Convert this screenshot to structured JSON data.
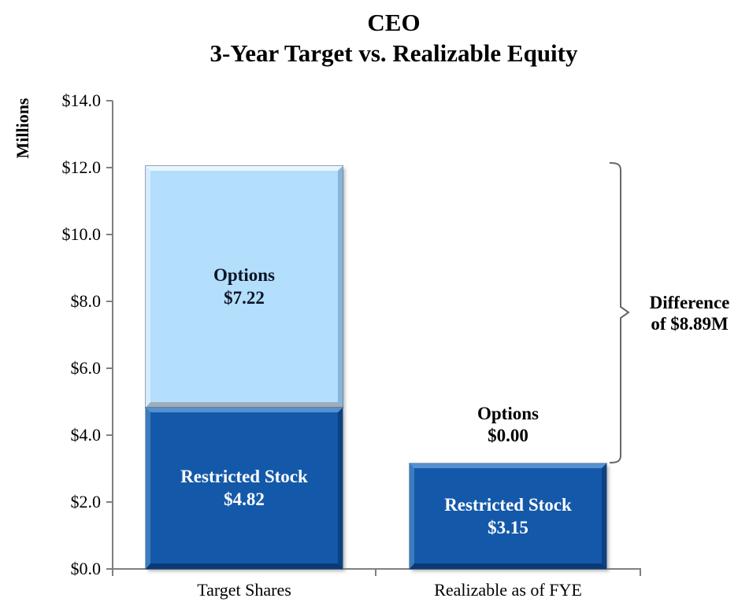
{
  "chart_data": {
    "type": "bar",
    "stacked": true,
    "title": "CEO",
    "subtitle": "3-Year Target vs. Realizable Equity",
    "ylabel": "Millions",
    "ylim": [
      0,
      14
    ],
    "ytick_step": 2,
    "ytick_labels": [
      "$14.0",
      "$12.0",
      "$10.0",
      "$8.0",
      "$6.0",
      "$4.0",
      "$2.0",
      "$0.0"
    ],
    "grid": false,
    "legend_position": "none",
    "categories": [
      "Target Shares",
      "Realizable as of FYE"
    ],
    "series": [
      {
        "name": "Restricted Stock",
        "values": [
          4.82,
          3.15
        ],
        "color": "#1459A9"
      },
      {
        "name": "Options",
        "values": [
          7.22,
          0.0
        ],
        "color": "#B3DEFC"
      }
    ],
    "bars": [
      {
        "category": "Target Shares",
        "total": 12.04,
        "segments": [
          {
            "name": "Options",
            "value": 7.22,
            "value_label": "$7.22"
          },
          {
            "name": "Restricted Stock",
            "value": 4.82,
            "value_label": "$4.82"
          }
        ]
      },
      {
        "category": "Realizable as of FYE",
        "total": 3.15,
        "segments": [
          {
            "name": "Options",
            "value": 0.0,
            "value_label": "$0.00"
          },
          {
            "name": "Restricted Stock",
            "value": 3.15,
            "value_label": "$3.15"
          }
        ]
      }
    ],
    "annotation": {
      "line1": "Difference",
      "line2": "of $8.89M"
    },
    "colors": {
      "restricted_stock_fill": "#1459A9",
      "options_fill": "#B3DEFC",
      "axis": "#808080",
      "bracket": "#666666",
      "title_text": "#000000",
      "label_on_light_bar": "#0B1426",
      "label_on_dark_bar": "#FFFFFF"
    }
  }
}
